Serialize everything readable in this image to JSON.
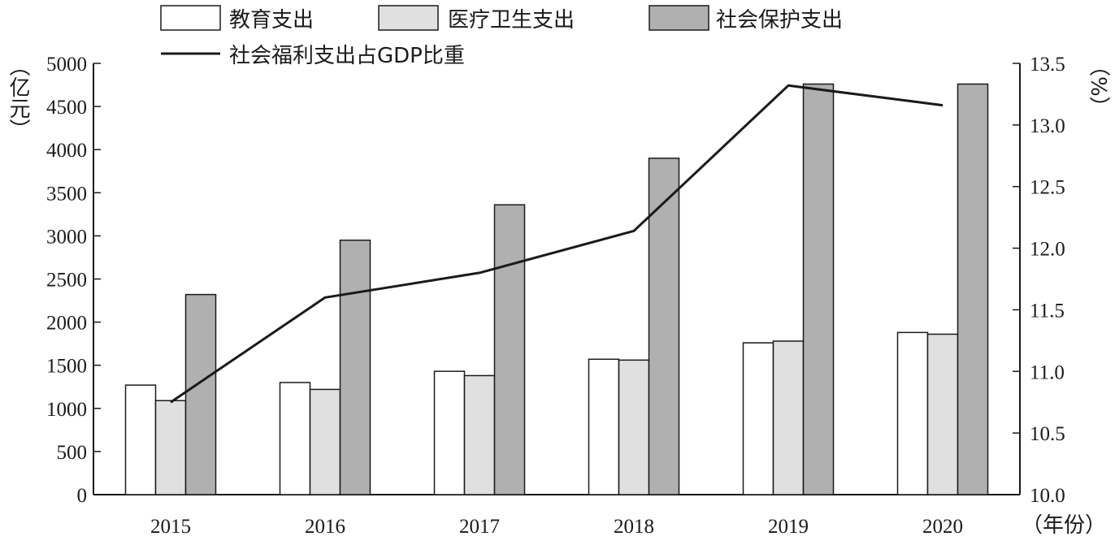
{
  "chart_data": {
    "type": "bar",
    "categories": [
      "2015",
      "2016",
      "2017",
      "2018",
      "2019",
      "2020"
    ],
    "series": [
      {
        "name": "教育支出",
        "type": "bar",
        "axis": "left",
        "color": "#ffffff",
        "values": [
          1270,
          1300,
          1430,
          1570,
          1760,
          1880
        ]
      },
      {
        "name": "医疗卫生支出",
        "type": "bar",
        "axis": "left",
        "color": "#e0e0e0",
        "values": [
          1090,
          1220,
          1380,
          1560,
          1780,
          1860
        ]
      },
      {
        "name": "社会保护支出",
        "type": "bar",
        "axis": "left",
        "color": "#b0b0b0",
        "values": [
          2320,
          2950,
          3360,
          3900,
          4760,
          4760
        ]
      },
      {
        "name": "社会福利支出占GDP比重",
        "type": "line",
        "axis": "right",
        "color": "#1a1a1a",
        "values": [
          10.75,
          11.6,
          11.8,
          12.14,
          13.32,
          13.16
        ]
      }
    ],
    "left_axis": {
      "unit": "（亿元）",
      "ylim": [
        0,
        5000
      ],
      "ticks": [
        "0",
        "500",
        "1000",
        "1500",
        "2000",
        "2500",
        "3000",
        "3500",
        "4000",
        "4500",
        "5000"
      ]
    },
    "right_axis": {
      "unit": "（%）",
      "ylim": [
        10.0,
        13.5
      ],
      "ticks": [
        "10.0",
        "10.5",
        "11.0",
        "11.5",
        "12.0",
        "12.5",
        "13.0",
        "13.5"
      ]
    },
    "x_axis": {
      "unit": "（年份）"
    },
    "grid": false,
    "legend_position": "top"
  }
}
